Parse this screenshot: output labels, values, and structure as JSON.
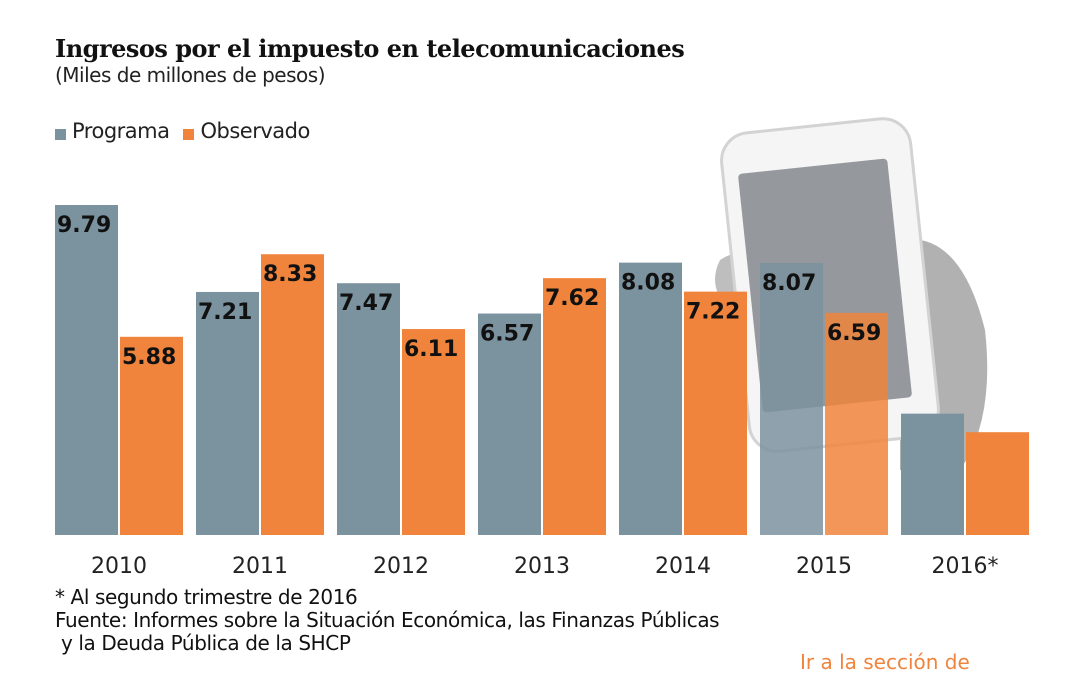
{
  "chart_data": {
    "type": "bar",
    "title": "Ingresos por el impuesto en telecomunicaciones",
    "subtitle": "(Miles de millones de pesos)",
    "categories": [
      "2010",
      "2011",
      "2012",
      "2013",
      "2014",
      "2015",
      "2016*"
    ],
    "series": [
      {
        "name": "Programa",
        "color": "#7b929f",
        "values": [
          9.79,
          7.21,
          7.47,
          6.57,
          8.08,
          8.07,
          3.6
        ],
        "labels": [
          "9.79",
          "7.21",
          "7.47",
          "6.57",
          "8.08",
          "8.07",
          ""
        ]
      },
      {
        "name": "Observado",
        "color": "#f0843c",
        "values": [
          5.88,
          8.33,
          6.11,
          7.62,
          7.22,
          6.59,
          3.05
        ],
        "labels": [
          "5.88",
          "8.33",
          "6.11",
          "7.62",
          "7.22",
          "6.59",
          ""
        ]
      }
    ],
    "ylim": [
      0,
      10
    ],
    "grid": false,
    "legend": "top-left"
  },
  "notes": {
    "footnote": "* Al segundo trimestre de 2016",
    "source_1": "Fuente: Informes sobre la Situación Económica, las Finanzas Públicas",
    "source_2": " y la Deuda Pública de la SHCP"
  },
  "link_text": "Ir a la sección de"
}
